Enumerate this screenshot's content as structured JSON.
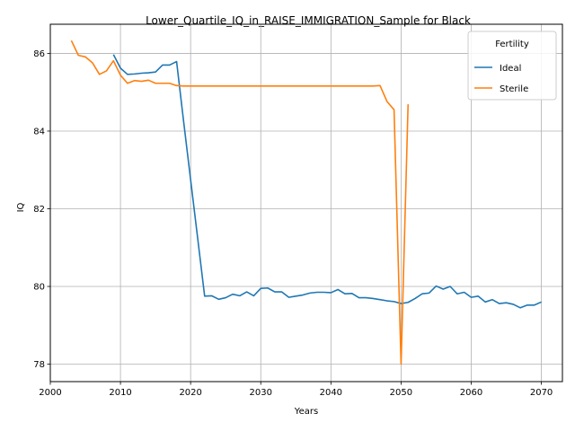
{
  "chart_data": {
    "type": "line",
    "title": "Lower_Quartile_IQ_in_RAISE_IMMIGRATION_Sample for Black",
    "xlabel": "Years",
    "ylabel": "IQ",
    "xlim": [
      2000,
      2073
    ],
    "ylim": [
      77.55,
      86.75
    ],
    "xticks": [
      2000,
      2010,
      2020,
      2030,
      2040,
      2050,
      2060,
      2070
    ],
    "yticks": [
      78,
      80,
      82,
      84,
      86
    ],
    "grid": true,
    "legend": {
      "title": "Fertility",
      "position": "top-right"
    },
    "series": [
      {
        "name": "Ideal",
        "color": "#1f77b4",
        "x": [
          2009,
          2010,
          2011,
          2012,
          2013,
          2014,
          2015,
          2016,
          2017,
          2018,
          2019,
          2020,
          2021,
          2022,
          2023,
          2024,
          2025,
          2026,
          2027,
          2028,
          2029,
          2030,
          2031,
          2032,
          2033,
          2034,
          2035,
          2036,
          2037,
          2038,
          2039,
          2040,
          2041,
          2042,
          2043,
          2044,
          2045,
          2046,
          2047,
          2048,
          2049,
          2050,
          2051,
          2052,
          2053,
          2054,
          2055,
          2056,
          2057,
          2058,
          2059,
          2060,
          2061,
          2062,
          2063,
          2064,
          2065,
          2066,
          2067,
          2068,
          2069,
          2070
        ],
        "y": [
          85.97,
          85.62,
          85.46,
          85.47,
          85.49,
          85.5,
          85.52,
          85.7,
          85.7,
          85.79,
          84.25,
          82.75,
          81.25,
          79.75,
          79.76,
          79.67,
          79.71,
          79.8,
          79.76,
          79.86,
          79.76,
          79.95,
          79.96,
          79.86,
          79.86,
          79.72,
          79.75,
          79.78,
          79.83,
          79.85,
          79.85,
          79.84,
          79.92,
          79.81,
          79.82,
          79.71,
          79.71,
          79.69,
          79.66,
          79.63,
          79.61,
          79.56,
          79.59,
          79.69,
          79.81,
          79.83,
          80.01,
          79.93,
          80.0,
          79.81,
          79.85,
          79.72,
          79.75,
          79.6,
          79.66,
          79.56,
          79.58,
          79.54,
          79.45,
          79.52,
          79.52,
          79.6
        ]
      },
      {
        "name": "Sterile",
        "color": "#ff7f0e",
        "x": [
          2003,
          2004,
          2005,
          2006,
          2007,
          2008,
          2009,
          2010,
          2011,
          2012,
          2013,
          2014,
          2015,
          2016,
          2017,
          2018,
          2019,
          2020,
          2021,
          2022,
          2023,
          2024,
          2025,
          2026,
          2027,
          2028,
          2029,
          2030,
          2031,
          2032,
          2033,
          2034,
          2035,
          2036,
          2037,
          2038,
          2039,
          2040,
          2041,
          2042,
          2043,
          2044,
          2045,
          2046,
          2047,
          2048,
          2049,
          2050,
          2051
        ],
        "y": [
          86.33,
          85.95,
          85.91,
          85.76,
          85.46,
          85.55,
          85.81,
          85.44,
          85.23,
          85.3,
          85.28,
          85.31,
          85.23,
          85.23,
          85.23,
          85.17,
          85.16,
          85.16,
          85.16,
          85.16,
          85.16,
          85.16,
          85.16,
          85.16,
          85.16,
          85.16,
          85.16,
          85.16,
          85.16,
          85.16,
          85.16,
          85.16,
          85.16,
          85.16,
          85.16,
          85.16,
          85.16,
          85.16,
          85.16,
          85.16,
          85.16,
          85.16,
          85.16,
          85.16,
          85.17,
          84.76,
          84.55,
          78.0,
          84.69
        ]
      }
    ]
  }
}
